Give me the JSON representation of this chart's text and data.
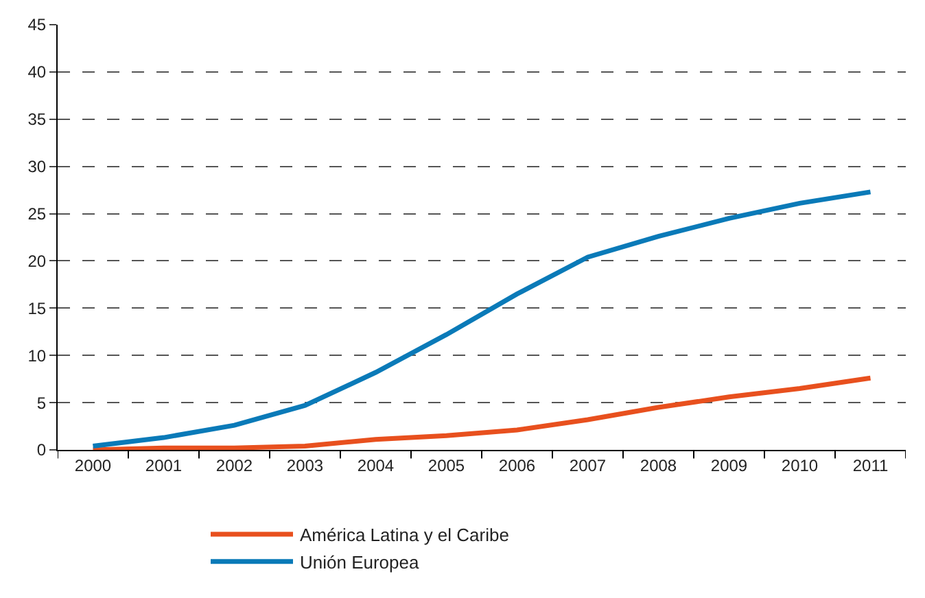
{
  "chart_data": {
    "type": "line",
    "categories": [
      "2000",
      "2001",
      "2002",
      "2003",
      "2004",
      "2005",
      "2006",
      "2007",
      "2008",
      "2009",
      "2010",
      "2011"
    ],
    "series": [
      {
        "name": "América Latina y el Caribe",
        "color": "#e8501e",
        "values": [
          0.0,
          0.2,
          0.2,
          0.4,
          1.1,
          1.5,
          2.1,
          3.2,
          4.5,
          5.6,
          6.5,
          7.6
        ]
      },
      {
        "name": "Unión Europea",
        "color": "#0a7ab8",
        "values": [
          0.4,
          1.3,
          2.6,
          4.7,
          8.2,
          12.2,
          16.5,
          20.4,
          22.6,
          24.5,
          26.1,
          27.3
        ]
      }
    ],
    "ylim": [
      0,
      45
    ],
    "yticks": [
      0,
      5,
      10,
      15,
      20,
      25,
      30,
      35,
      40,
      45
    ],
    "grid": "y",
    "legend": "bottom",
    "marker": "none",
    "line_style": "solid"
  }
}
